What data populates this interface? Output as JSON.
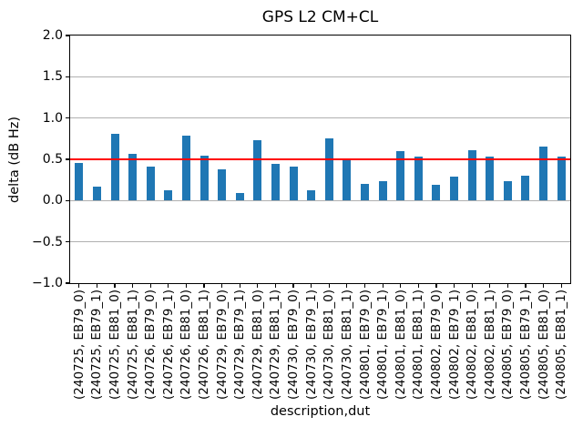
{
  "chart_data": {
    "type": "bar",
    "title": "GPS L2 CM+CL",
    "xlabel": "description,dut",
    "ylabel": "delta (dB Hz)",
    "ylim": [
      -1.0,
      2.0
    ],
    "yticks": [
      2.0,
      1.5,
      1.0,
      0.5,
      0.0,
      -0.5,
      -1.0
    ],
    "ytick_labels": [
      "2.0",
      "1.5",
      "1.0",
      "0.5",
      "0.0",
      "−0.5",
      "−1.0"
    ],
    "grid": true,
    "legend": false,
    "bar_color": "#1f77b4",
    "grid_color": "#b0b0b0",
    "threshold": {
      "value": 0.5,
      "color": "#ff0000"
    },
    "categories": [
      "(240725, EB79_0)",
      "(240725, EB79_1)",
      "(240725, EB81_0)",
      "(240725, EB81_1)",
      "(240726, EB79_0)",
      "(240726, EB79_1)",
      "(240726, EB81_0)",
      "(240726, EB81_1)",
      "(240729, EB79_0)",
      "(240729, EB79_1)",
      "(240729, EB81_0)",
      "(240729, EB81_1)",
      "(240730, EB79_0)",
      "(240730, EB79_1)",
      "(240730, EB81_0)",
      "(240730, EB81_1)",
      "(240801, EB79_0)",
      "(240801, EB79_1)",
      "(240801, EB81_0)",
      "(240801, EB81_1)",
      "(240802, EB79_0)",
      "(240802, EB79_1)",
      "(240802, EB81_0)",
      "(240802, EB81_1)",
      "(240805, EB79_0)",
      "(240805, EB79_1)",
      "(240805, EB81_0)",
      "(240805, EB81_1)"
    ],
    "values": [
      0.46,
      0.17,
      0.81,
      0.57,
      0.41,
      0.13,
      0.79,
      0.54,
      0.38,
      0.09,
      0.73,
      0.45,
      0.41,
      0.13,
      0.75,
      0.51,
      0.2,
      0.24,
      0.6,
      0.53,
      0.19,
      0.29,
      0.61,
      0.53,
      0.24,
      0.3,
      0.65,
      0.53
    ]
  }
}
